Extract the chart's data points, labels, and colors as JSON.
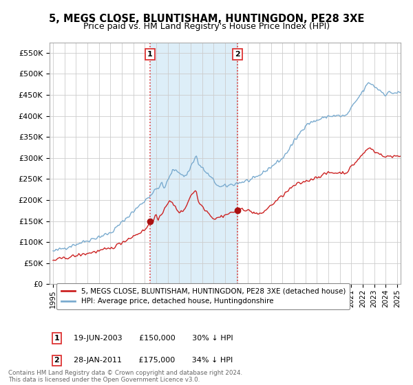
{
  "title": "5, MEGS CLOSE, BLUNTISHAM, HUNTINGDON, PE28 3XE",
  "subtitle": "Price paid vs. HM Land Registry's House Price Index (HPI)",
  "ylabel_ticks": [
    "£0",
    "£50K",
    "£100K",
    "£150K",
    "£200K",
    "£250K",
    "£300K",
    "£350K",
    "£400K",
    "£450K",
    "£500K",
    "£550K"
  ],
  "ytick_vals": [
    0,
    50000,
    100000,
    150000,
    200000,
    250000,
    300000,
    350000,
    400000,
    450000,
    500000,
    550000
  ],
  "ylim": [
    0,
    575000
  ],
  "legend_entries": [
    "5, MEGS CLOSE, BLUNTISHAM, HUNTINGDON, PE28 3XE (detached house)",
    "HPI: Average price, detached house, Huntingdonshire"
  ],
  "sale1_date": "19-JUN-2003",
  "sale1_price": 150000,
  "sale1_pct": "30%",
  "sale1_label": "1",
  "sale1_x": 2003.46,
  "sale2_date": "28-JAN-2011",
  "sale2_price": 175000,
  "sale2_pct": "34%",
  "sale2_label": "2",
  "sale2_x": 2011.07,
  "footnote": "Contains HM Land Registry data © Crown copyright and database right 2024.\nThis data is licensed under the Open Government Licence v3.0.",
  "hpi_color": "#7aabcf",
  "price_color": "#cc2222",
  "sale_marker_color": "#aa1111",
  "background_color": "#ffffff",
  "plot_bg_color": "#ffffff",
  "grid_color": "#cccccc",
  "vline_color": "#dd3333",
  "highlight_color": "#ddeef8",
  "title_fontsize": 10.5,
  "subtitle_fontsize": 9
}
